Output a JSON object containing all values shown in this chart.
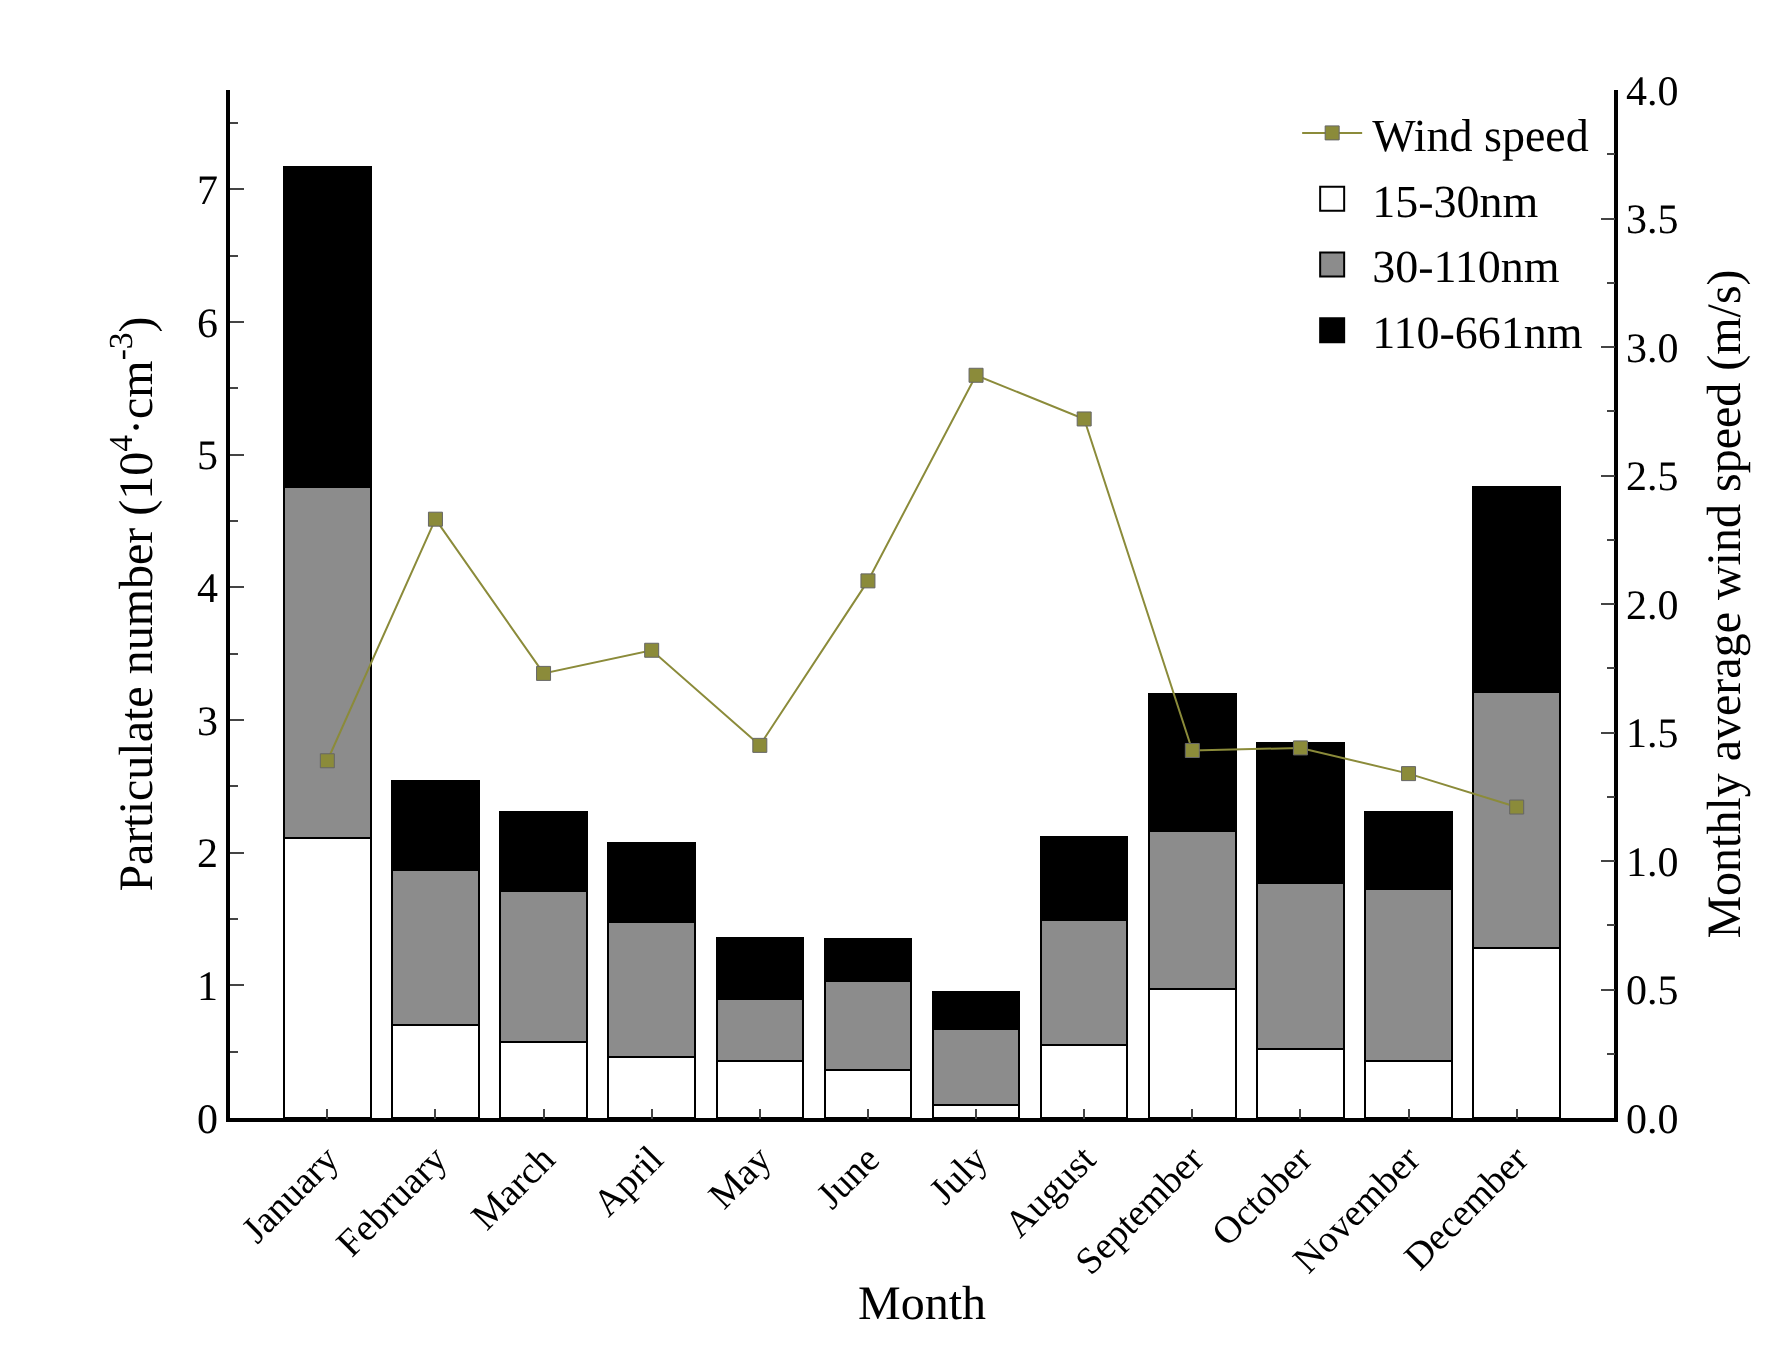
{
  "chart_data": {
    "type": "bar",
    "stacked": true,
    "xlabel": "Month",
    "ylabel": "Particulate number (10$^{4}$·cm$^{-3}$)",
    "y2label": "Monthly average wind speed (m/s)",
    "categories": [
      "January",
      "February",
      "March",
      "April",
      "May",
      "June",
      "July",
      "August",
      "September",
      "October",
      "November",
      "December"
    ],
    "series": [
      {
        "name": "Wind speed",
        "type": "line",
        "axis": "y2",
        "color": "#8b8b3a",
        "marker": "square",
        "values": [
          1.39,
          2.33,
          1.73,
          1.82,
          1.45,
          2.09,
          2.89,
          2.72,
          1.43,
          1.44,
          1.34,
          1.21
        ]
      },
      {
        "name": "15-30nm",
        "color": "#ffffff",
        "values": [
          2.11,
          0.7,
          0.57,
          0.46,
          0.43,
          0.36,
          0.1,
          0.55,
          0.97,
          0.52,
          0.43,
          1.28
        ]
      },
      {
        "name": "30-110nm",
        "color": "#8c8c8c",
        "values": [
          2.65,
          1.17,
          1.14,
          1.02,
          0.47,
          0.67,
          0.57,
          0.94,
          1.19,
          1.25,
          1.3,
          1.93
        ]
      },
      {
        "name": "110-661nm",
        "color": "#000000",
        "values": [
          2.41,
          0.67,
          0.6,
          0.59,
          0.46,
          0.32,
          0.28,
          0.63,
          1.04,
          1.06,
          0.58,
          1.55
        ]
      }
    ],
    "ylim": [
      0,
      7.75
    ],
    "yticks": [
      0,
      1,
      2,
      3,
      4,
      5,
      6,
      7
    ],
    "y2lim": [
      0,
      4.0
    ],
    "y2ticks": [
      {
        "value": 0,
        "label": "0.0"
      },
      0.5,
      {
        "value": 1,
        "label": "1.0"
      },
      1.5,
      {
        "value": 2,
        "label": "2.0"
      },
      2.5,
      {
        "value": 3,
        "label": "3.0"
      },
      3.5,
      {
        "value": 4,
        "label": "4.0"
      }
    ],
    "legend": "top right"
  }
}
